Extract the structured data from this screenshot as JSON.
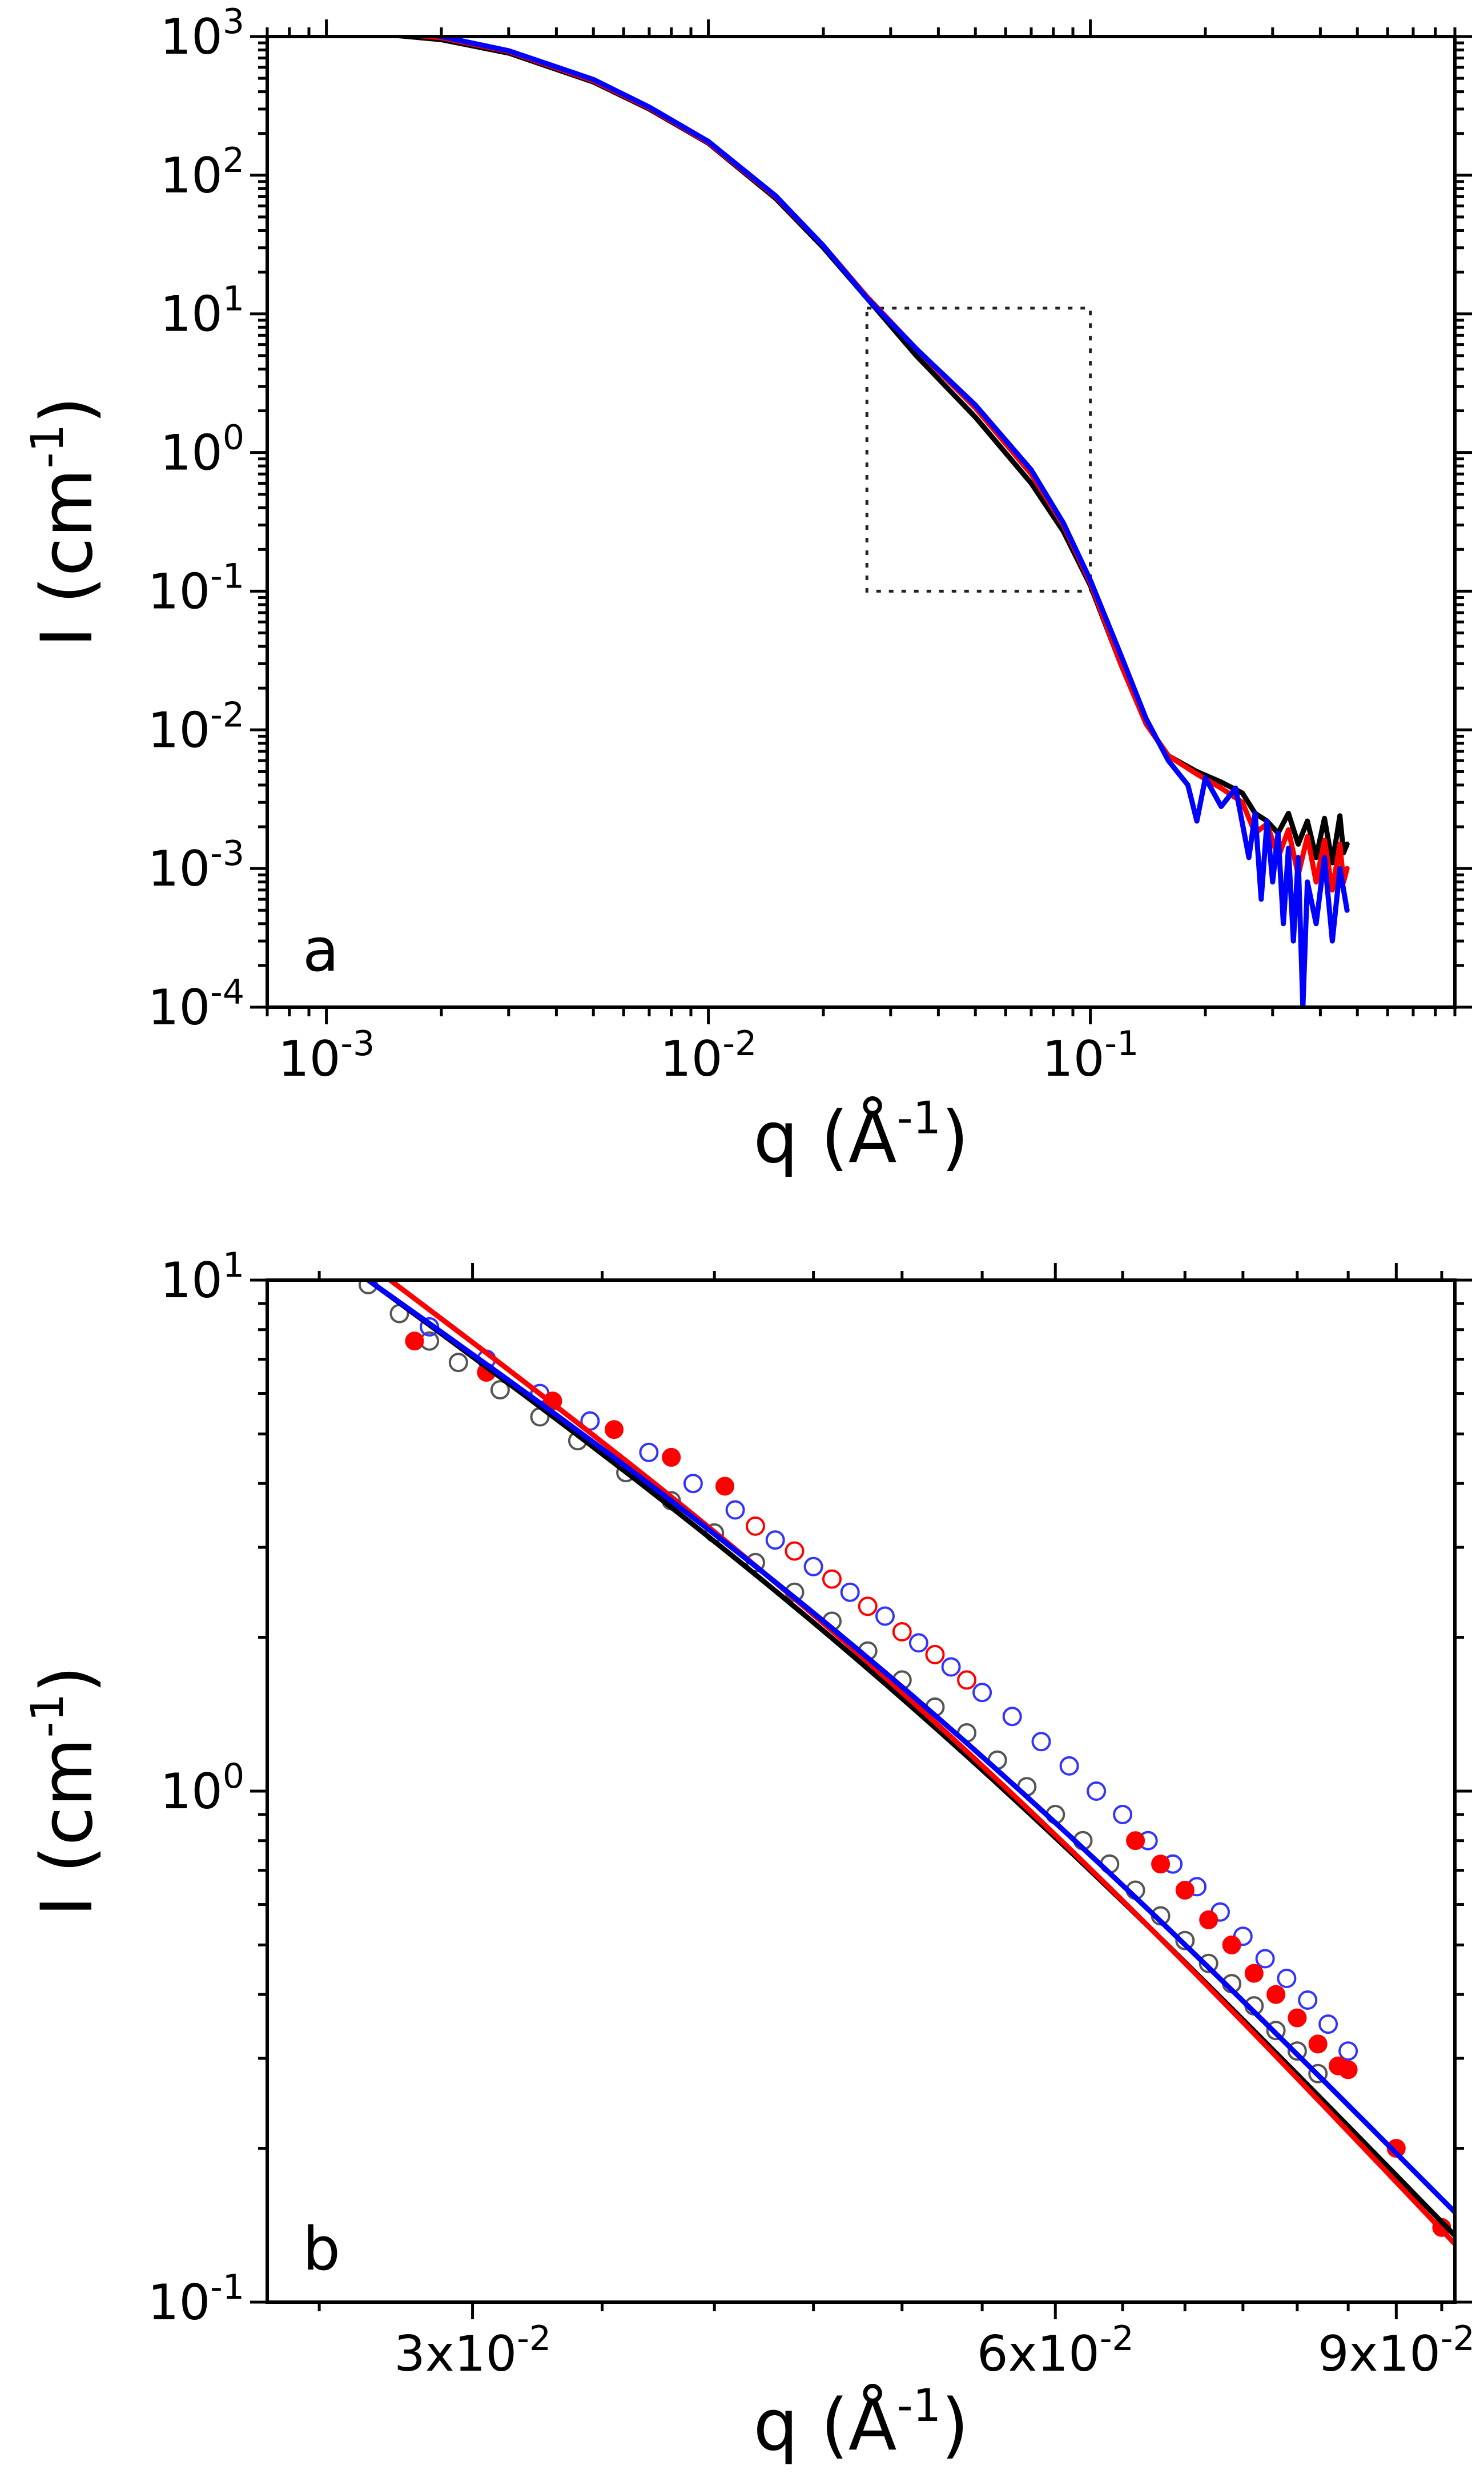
{
  "chart_data": [
    {
      "panel": "a",
      "type": "line",
      "xscale": "log",
      "yscale": "log",
      "xlim": [
        0.0007,
        0.9
      ],
      "ylim": [
        0.0001,
        1000
      ],
      "xticks": [
        {
          "value": 0.001,
          "base": "10",
          "exp": "-3"
        },
        {
          "value": 0.01,
          "base": "10",
          "exp": "-2"
        },
        {
          "value": 0.1,
          "base": "10",
          "exp": "-1"
        }
      ],
      "yticks": [
        {
          "value": 1000,
          "base": "10",
          "exp": "3"
        },
        {
          "value": 100,
          "base": "10",
          "exp": "2"
        },
        {
          "value": 10,
          "base": "10",
          "exp": "1"
        },
        {
          "value": 1,
          "base": "10",
          "exp": "0"
        },
        {
          "value": 0.1,
          "base": "10",
          "exp": "-1"
        },
        {
          "value": 0.01,
          "base": "10",
          "exp": "-2"
        },
        {
          "value": 0.001,
          "base": "10",
          "exp": "-3"
        },
        {
          "value": 0.0001,
          "base": "10",
          "exp": "-4"
        }
      ],
      "xlabel": {
        "main": "q (Å",
        "exp": "-1",
        "close": ")"
      },
      "ylabel": {
        "main": "I (cm",
        "exp": "-1",
        "close": ")"
      },
      "panel_label": "a",
      "zoom_box": {
        "x": [
          0.026,
          0.1
        ],
        "y": [
          0.1,
          11
        ]
      },
      "series": [
        {
          "name": "black",
          "color": "#000000",
          "points": [
            [
              0.00135,
              1050
            ],
            [
              0.002,
              950
            ],
            [
              0.003,
              760
            ],
            [
              0.005,
              470
            ],
            [
              0.007,
              300
            ],
            [
              0.01,
              170
            ],
            [
              0.015,
              68
            ],
            [
              0.02,
              30
            ],
            [
              0.026,
              13
            ],
            [
              0.035,
              5
            ],
            [
              0.05,
              1.8
            ],
            [
              0.07,
              0.6
            ],
            [
              0.085,
              0.27
            ],
            [
              0.1,
              0.11
            ],
            [
              0.12,
              0.03
            ],
            [
              0.14,
              0.011
            ],
            [
              0.16,
              0.0065
            ],
            [
              0.19,
              0.005
            ],
            [
              0.22,
              0.0042
            ],
            [
              0.25,
              0.0035
            ],
            [
              0.27,
              0.0025
            ],
            [
              0.29,
              0.0022
            ],
            [
              0.31,
              0.0018
            ],
            [
              0.33,
              0.0025
            ],
            [
              0.35,
              0.0015
            ],
            [
              0.37,
              0.0022
            ],
            [
              0.39,
              0.0012
            ],
            [
              0.41,
              0.0023
            ],
            [
              0.43,
              0.0011
            ],
            [
              0.45,
              0.0024
            ],
            [
              0.46,
              0.0013
            ],
            [
              0.47,
              0.0015
            ]
          ]
        },
        {
          "name": "red",
          "color": "#ff0000",
          "points": [
            [
              0.00135,
              1080
            ],
            [
              0.002,
              980
            ],
            [
              0.003,
              780
            ],
            [
              0.005,
              480
            ],
            [
              0.007,
              305
            ],
            [
              0.01,
              172
            ],
            [
              0.015,
              70
            ],
            [
              0.02,
              31
            ],
            [
              0.026,
              13.3
            ],
            [
              0.035,
              5.6
            ],
            [
              0.05,
              2.1
            ],
            [
              0.07,
              0.7
            ],
            [
              0.085,
              0.3
            ],
            [
              0.1,
              0.115
            ],
            [
              0.12,
              0.03
            ],
            [
              0.14,
              0.011
            ],
            [
              0.16,
              0.0065
            ],
            [
              0.19,
              0.0048
            ],
            [
              0.22,
              0.0038
            ],
            [
              0.25,
              0.003
            ],
            [
              0.27,
              0.0018
            ],
            [
              0.29,
              0.0021
            ],
            [
              0.31,
              0.0012
            ],
            [
              0.33,
              0.0019
            ],
            [
              0.35,
              0.0009
            ],
            [
              0.37,
              0.0017
            ],
            [
              0.39,
              0.0008
            ],
            [
              0.41,
              0.0016
            ],
            [
              0.43,
              0.0007
            ],
            [
              0.45,
              0.0015
            ],
            [
              0.46,
              0.0008
            ],
            [
              0.47,
              0.001
            ]
          ]
        },
        {
          "name": "blue",
          "color": "#0000ff",
          "points": [
            [
              0.00135,
              1100
            ],
            [
              0.0016,
              1120
            ],
            [
              0.002,
              1000
            ],
            [
              0.003,
              790
            ],
            [
              0.005,
              490
            ],
            [
              0.007,
              310
            ],
            [
              0.01,
              175
            ],
            [
              0.015,
              71
            ],
            [
              0.02,
              31
            ],
            [
              0.026,
              13
            ],
            [
              0.035,
              5.6
            ],
            [
              0.05,
              2.2
            ],
            [
              0.07,
              0.75
            ],
            [
              0.085,
              0.31
            ],
            [
              0.1,
              0.12
            ],
            [
              0.12,
              0.035
            ],
            [
              0.14,
              0.012
            ],
            [
              0.16,
              0.006
            ],
            [
              0.18,
              0.004
            ],
            [
              0.19,
              0.0022
            ],
            [
              0.2,
              0.0045
            ],
            [
              0.22,
              0.0028
            ],
            [
              0.24,
              0.0038
            ],
            [
              0.26,
              0.0012
            ],
            [
              0.27,
              0.0025
            ],
            [
              0.28,
              0.0006
            ],
            [
              0.29,
              0.0022
            ],
            [
              0.3,
              0.0008
            ],
            [
              0.31,
              0.0018
            ],
            [
              0.32,
              0.0004
            ],
            [
              0.33,
              0.0014
            ],
            [
              0.34,
              0.0003
            ],
            [
              0.35,
              0.0012
            ],
            [
              0.36,
              0.0001
            ],
            [
              0.37,
              0.0008
            ],
            [
              0.39,
              0.0004
            ],
            [
              0.41,
              0.0012
            ],
            [
              0.43,
              0.0003
            ],
            [
              0.45,
              0.001
            ],
            [
              0.47,
              0.0005
            ]
          ]
        }
      ]
    },
    {
      "panel": "b",
      "type": "scatter",
      "xscale": "log",
      "yscale": "log",
      "xlim": [
        0.0235,
        0.0965
      ],
      "ylim": [
        0.1,
        10
      ],
      "xticks": [
        {
          "value": 0.03,
          "mant": "3x",
          "base": "10",
          "exp": "-2"
        },
        {
          "value": 0.06,
          "mant": "6x",
          "base": "10",
          "exp": "-2"
        },
        {
          "value": 0.09,
          "mant": "9x",
          "base": "10",
          "exp": "-2"
        }
      ],
      "yticks": [
        {
          "value": 10,
          "base": "10",
          "exp": "1"
        },
        {
          "value": 1,
          "base": "10",
          "exp": "0"
        },
        {
          "value": 0.1,
          "base": "10",
          "exp": "-1"
        }
      ],
      "xlabel": {
        "main": "q (Å",
        "exp": "-1",
        "close": ")"
      },
      "ylabel": {
        "main": "I (cm",
        "exp": "-1",
        "close": ")"
      },
      "panel_label": "b",
      "fits": [
        {
          "name": "black fit",
          "color": "#000000",
          "x": [
            0.0265,
            0.0965
          ],
          "y": [
            10.0,
            0.135
          ]
        },
        {
          "name": "red fit",
          "color": "#ff0000",
          "x": [
            0.0272,
            0.0965
          ],
          "y": [
            10.0,
            0.13
          ]
        },
        {
          "name": "blue fit",
          "color": "#0000ff",
          "x": [
            0.0265,
            0.0965
          ],
          "y": [
            10.0,
            0.15
          ]
        }
      ],
      "series": [
        {
          "name": "black open",
          "color": "#555555",
          "marker": "open",
          "points": [
            [
              0.0265,
              9.8
            ],
            [
              0.0275,
              8.6
            ],
            [
              0.0285,
              7.6
            ],
            [
              0.0295,
              6.9
            ],
            [
              0.031,
              6.1
            ],
            [
              0.0325,
              5.4
            ],
            [
              0.034,
              4.85
            ],
            [
              0.036,
              4.2
            ],
            [
              0.038,
              3.7
            ],
            [
              0.04,
              3.2
            ],
            [
              0.042,
              2.8
            ],
            [
              0.044,
              2.45
            ],
            [
              0.046,
              2.15
            ],
            [
              0.048,
              1.88
            ],
            [
              0.05,
              1.65
            ],
            [
              0.052,
              1.46
            ],
            [
              0.054,
              1.3
            ],
            [
              0.056,
              1.15
            ],
            [
              0.058,
              1.02
            ],
            [
              0.06,
              0.9
            ],
            [
              0.062,
              0.8
            ],
            [
              0.064,
              0.72
            ],
            [
              0.066,
              0.64
            ],
            [
              0.068,
              0.57
            ],
            [
              0.07,
              0.51
            ],
            [
              0.072,
              0.46
            ],
            [
              0.074,
              0.42
            ],
            [
              0.076,
              0.38
            ],
            [
              0.078,
              0.34
            ],
            [
              0.08,
              0.31
            ],
            [
              0.082,
              0.28
            ]
          ]
        },
        {
          "name": "blue open",
          "color": "#3333ff",
          "marker": "open",
          "points": [
            [
              0.0285,
              8.1
            ],
            [
              0.0305,
              7.0
            ],
            [
              0.0325,
              6.0
            ],
            [
              0.0345,
              5.3
            ],
            [
              0.037,
              4.6
            ],
            [
              0.039,
              4.0
            ],
            [
              0.041,
              3.55
            ],
            [
              0.043,
              3.1
            ],
            [
              0.045,
              2.75
            ],
            [
              0.047,
              2.45
            ],
            [
              0.049,
              2.2
            ],
            [
              0.051,
              1.95
            ],
            [
              0.053,
              1.75
            ],
            [
              0.055,
              1.56
            ],
            [
              0.057,
              1.4
            ],
            [
              0.059,
              1.25
            ],
            [
              0.061,
              1.12
            ],
            [
              0.063,
              1.0
            ],
            [
              0.065,
              0.9
            ],
            [
              0.067,
              0.8
            ],
            [
              0.069,
              0.72
            ],
            [
              0.071,
              0.65
            ],
            [
              0.073,
              0.58
            ],
            [
              0.075,
              0.52
            ],
            [
              0.077,
              0.47
            ],
            [
              0.079,
              0.43
            ],
            [
              0.081,
              0.39
            ],
            [
              0.083,
              0.35
            ],
            [
              0.085,
              0.31
            ]
          ]
        },
        {
          "name": "red open",
          "color": "#ff0000",
          "marker": "open",
          "points": [
            [
              0.042,
              3.3
            ],
            [
              0.044,
              2.95
            ],
            [
              0.046,
              2.6
            ],
            [
              0.048,
              2.3
            ],
            [
              0.05,
              2.05
            ],
            [
              0.052,
              1.85
            ],
            [
              0.054,
              1.65
            ]
          ]
        },
        {
          "name": "red filled",
          "color": "#ff0000",
          "marker": "filled",
          "points": [
            [
              0.028,
              7.6
            ],
            [
              0.0305,
              6.6
            ],
            [
              0.033,
              5.8
            ],
            [
              0.0355,
              5.1
            ],
            [
              0.038,
              4.5
            ],
            [
              0.0405,
              3.95
            ],
            [
              0.066,
              0.8
            ],
            [
              0.068,
              0.72
            ],
            [
              0.07,
              0.64
            ],
            [
              0.072,
              0.56
            ],
            [
              0.074,
              0.5
            ],
            [
              0.076,
              0.44
            ],
            [
              0.078,
              0.4
            ],
            [
              0.08,
              0.36
            ],
            [
              0.082,
              0.32
            ],
            [
              0.084,
              0.29
            ],
            [
              0.085,
              0.285
            ],
            [
              0.09,
              0.2
            ],
            [
              0.095,
              0.14
            ]
          ]
        }
      ]
    }
  ]
}
